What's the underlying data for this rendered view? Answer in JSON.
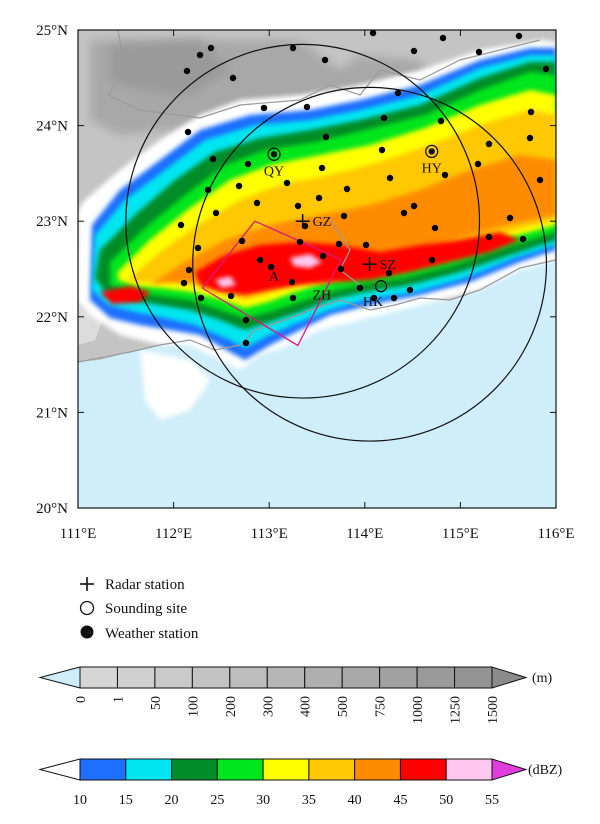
{
  "map": {
    "lon_range": [
      111,
      116
    ],
    "lat_range": [
      20,
      25
    ],
    "x_ticks": [
      "111°E",
      "112°E",
      "113°E",
      "114°E",
      "115°E",
      "116°E"
    ],
    "y_ticks": [
      "25°N",
      "24°N",
      "23°N",
      "22°N",
      "21°N",
      "20°N"
    ],
    "sea_color": "#cfeefa"
  },
  "sites": [
    {
      "label": "QY",
      "lon": 113.05,
      "lat": 23.7,
      "kind": "sounding+weather"
    },
    {
      "label": "HY",
      "lon": 114.7,
      "lat": 23.73,
      "kind": "sounding+weather"
    },
    {
      "label": "GZ",
      "lon": 113.35,
      "lat": 23.0,
      "kind": "radar"
    },
    {
      "label": "SZ",
      "lon": 114.05,
      "lat": 22.55,
      "kind": "radar"
    },
    {
      "label": "HK",
      "lon": 114.17,
      "lat": 22.32,
      "kind": "sounding"
    },
    {
      "label": "ZH",
      "lon": 113.55,
      "lat": 22.18,
      "kind": "text"
    },
    {
      "label": "A",
      "lon": 113.05,
      "lat": 22.38,
      "kind": "text"
    }
  ],
  "radar_rings": [
    {
      "center": "GZ",
      "radius_deg": 1.85
    },
    {
      "center": "SZ",
      "radius_deg": 1.85
    }
  ],
  "box_A": [
    [
      112.3,
      22.3
    ],
    [
      112.85,
      23.0
    ],
    [
      113.75,
      22.6
    ],
    [
      113.3,
      21.7
    ]
  ],
  "legend": {
    "radar": "Radar station",
    "sounding": "Sounding site",
    "weather": "Weather station"
  },
  "terrain_bar": {
    "unit": "(m)",
    "labels": [
      "0",
      "1",
      "50",
      "100",
      "200",
      "300",
      "400",
      "500",
      "750",
      "1000",
      "1250",
      "1500"
    ],
    "colors": [
      "#d6d6d6",
      "#d0d0d0",
      "#cacaca",
      "#c3c3c3",
      "#bdbdbd",
      "#b6b6b6",
      "#afafaf",
      "#a8a8a8",
      "#a1a1a1",
      "#9a9a9a",
      "#939393"
    ],
    "low_color": "#cfeefa",
    "high_color": "#8c8c8c"
  },
  "dbz_bar": {
    "unit": "(dBZ)",
    "labels": [
      "10",
      "15",
      "20",
      "25",
      "30",
      "35",
      "40",
      "45",
      "50",
      "55"
    ],
    "colors": [
      "#1e6eff",
      "#00e6f0",
      "#008c28",
      "#00e61e",
      "#ffff00",
      "#ffc800",
      "#ff8c00",
      "#ff0000",
      "#ffc8f0"
    ],
    "low_color": "#ffffff",
    "high_color": "#e13cdc"
  }
}
